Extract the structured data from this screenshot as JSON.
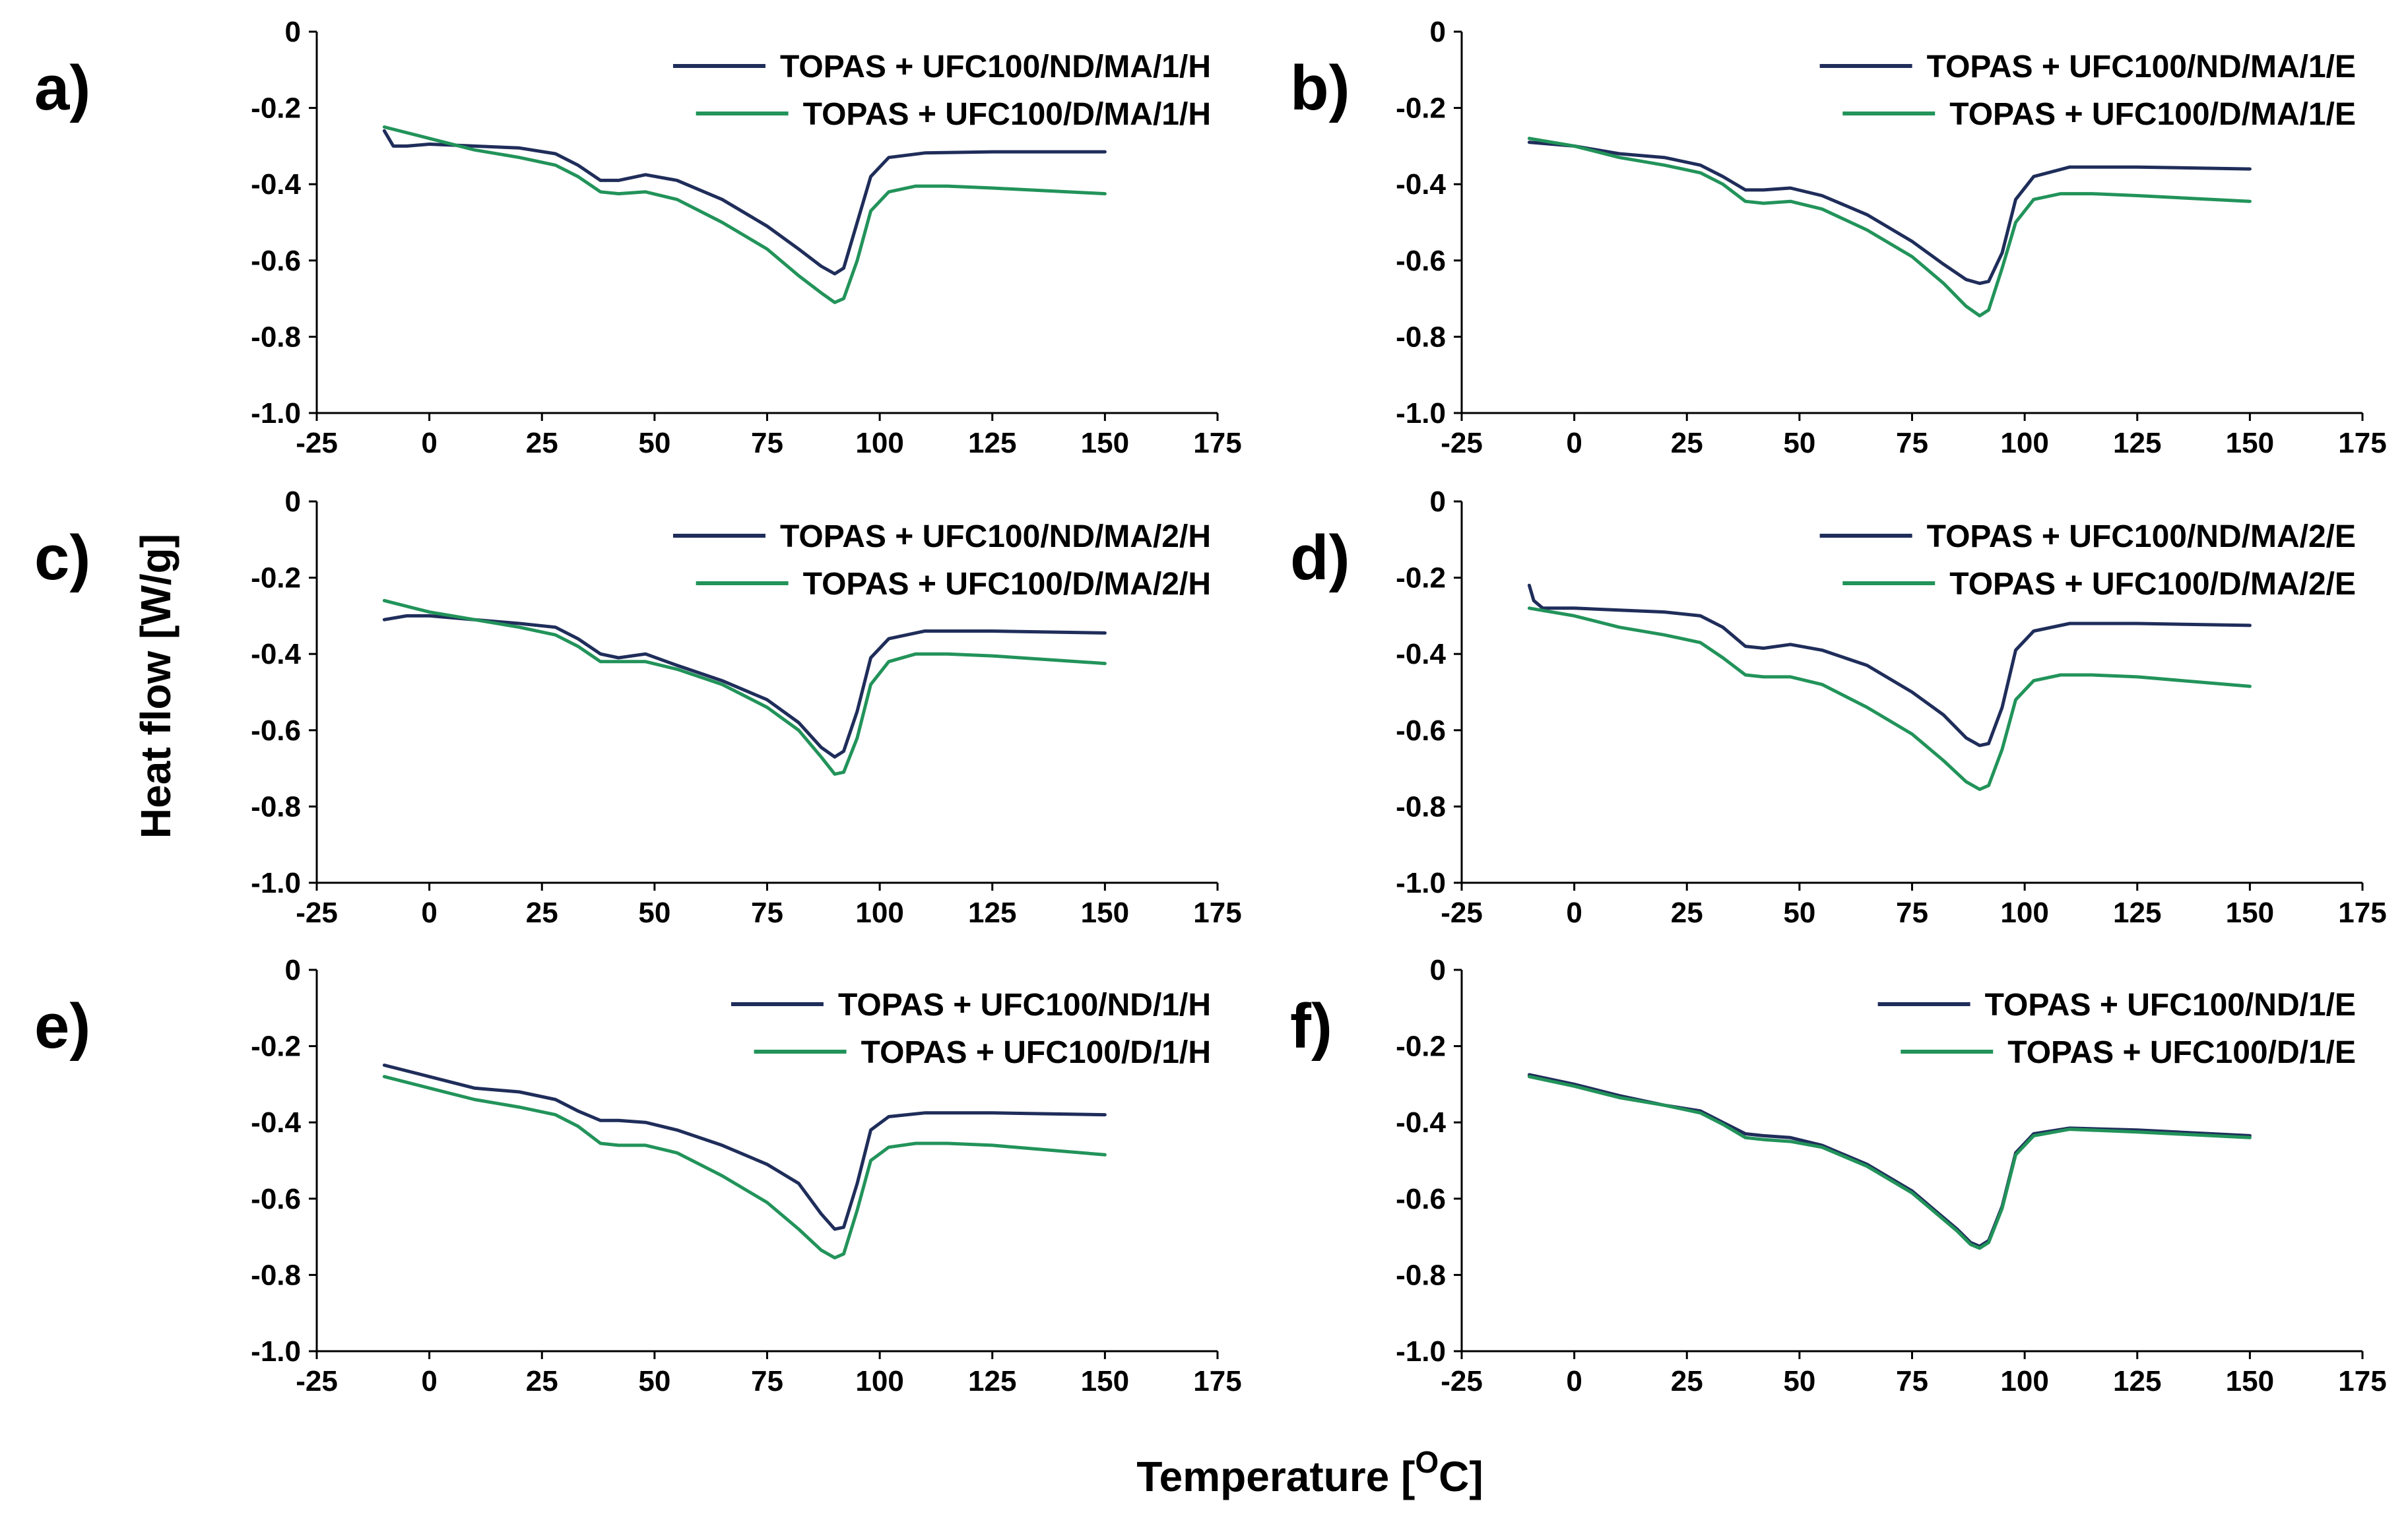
{
  "figure": {
    "ylabel": "Heat flow [W/g]",
    "xlabel_main": "Temperature [",
    "xlabel_sup": "O",
    "xlabel_end": "C]"
  },
  "colors": {
    "nd": "#1f2d5a",
    "d": "#22935a"
  },
  "chart_data": [
    {
      "type": "line",
      "panel": "a)",
      "title": "",
      "xlim": [
        -25,
        175
      ],
      "ylim": [
        -1.0,
        0
      ],
      "xticks": [
        -25,
        0,
        25,
        50,
        75,
        100,
        125,
        150,
        175
      ],
      "yticks": [
        0,
        -0.2,
        -0.4,
        -0.6,
        -0.8,
        -1.0
      ],
      "series": [
        {
          "name": "TOPAS + UFC100/ND/MA/1/H",
          "color": "#1f2d5a",
          "x": [
            -10,
            -8,
            -5,
            0,
            10,
            20,
            28,
            33,
            38,
            42,
            48,
            55,
            65,
            75,
            82,
            87,
            90,
            92,
            95,
            98,
            102,
            110,
            125,
            150
          ],
          "y": [
            -0.26,
            -0.3,
            -0.3,
            -0.295,
            -0.3,
            -0.305,
            -0.32,
            -0.35,
            -0.39,
            -0.39,
            -0.375,
            -0.39,
            -0.44,
            -0.51,
            -0.57,
            -0.615,
            -0.635,
            -0.62,
            -0.5,
            -0.38,
            -0.33,
            -0.318,
            -0.315,
            -0.315
          ]
        },
        {
          "name": "TOPAS + UFC100/D/MA/1/H",
          "color": "#22935a",
          "x": [
            -10,
            0,
            10,
            20,
            28,
            33,
            38,
            42,
            48,
            55,
            65,
            75,
            82,
            87,
            90,
            92,
            95,
            98,
            102,
            108,
            115,
            125,
            150
          ],
          "y": [
            -0.25,
            -0.28,
            -0.31,
            -0.33,
            -0.35,
            -0.38,
            -0.42,
            -0.425,
            -0.42,
            -0.44,
            -0.5,
            -0.57,
            -0.64,
            -0.685,
            -0.71,
            -0.7,
            -0.6,
            -0.47,
            -0.42,
            -0.405,
            -0.405,
            -0.41,
            -0.425
          ]
        }
      ]
    },
    {
      "type": "line",
      "panel": "b)",
      "title": "",
      "xlim": [
        -25,
        175
      ],
      "ylim": [
        -1.0,
        0
      ],
      "xticks": [
        -25,
        0,
        25,
        50,
        75,
        100,
        125,
        150,
        175
      ],
      "yticks": [
        0,
        -0.2,
        -0.4,
        -0.6,
        -0.8,
        -1.0
      ],
      "series": [
        {
          "name": "TOPAS + UFC100/ND/MA/1/E",
          "color": "#1f2d5a",
          "x": [
            -10,
            0,
            10,
            20,
            28,
            33,
            38,
            42,
            48,
            55,
            65,
            75,
            82,
            87,
            90,
            92,
            95,
            98,
            102,
            110,
            125,
            150
          ],
          "y": [
            -0.29,
            -0.3,
            -0.32,
            -0.33,
            -0.35,
            -0.38,
            -0.415,
            -0.415,
            -0.41,
            -0.43,
            -0.48,
            -0.55,
            -0.61,
            -0.65,
            -0.66,
            -0.655,
            -0.58,
            -0.44,
            -0.38,
            -0.355,
            -0.355,
            -0.36
          ]
        },
        {
          "name": "TOPAS + UFC100/D/MA/1/E",
          "color": "#22935a",
          "x": [
            -10,
            0,
            10,
            20,
            28,
            33,
            38,
            42,
            48,
            55,
            65,
            75,
            82,
            87,
            90,
            92,
            95,
            98,
            102,
            108,
            115,
            125,
            150
          ],
          "y": [
            -0.28,
            -0.3,
            -0.33,
            -0.35,
            -0.37,
            -0.4,
            -0.445,
            -0.45,
            -0.445,
            -0.465,
            -0.52,
            -0.59,
            -0.66,
            -0.72,
            -0.745,
            -0.73,
            -0.62,
            -0.5,
            -0.44,
            -0.425,
            -0.425,
            -0.43,
            -0.445
          ]
        }
      ]
    },
    {
      "type": "line",
      "panel": "c)",
      "title": "",
      "xlim": [
        -25,
        175
      ],
      "ylim": [
        -1.0,
        0
      ],
      "xticks": [
        -25,
        0,
        25,
        50,
        75,
        100,
        125,
        150,
        175
      ],
      "yticks": [
        0,
        -0.2,
        -0.4,
        -0.6,
        -0.8,
        -1.0
      ],
      "series": [
        {
          "name": "TOPAS + UFC100/ND/MA/2/H",
          "color": "#1f2d5a",
          "x": [
            -10,
            -5,
            0,
            10,
            20,
            28,
            33,
            38,
            42,
            48,
            55,
            65,
            75,
            82,
            87,
            90,
            92,
            95,
            98,
            102,
            110,
            125,
            150
          ],
          "y": [
            -0.31,
            -0.3,
            -0.3,
            -0.31,
            -0.32,
            -0.33,
            -0.36,
            -0.4,
            -0.41,
            -0.4,
            -0.43,
            -0.47,
            -0.52,
            -0.58,
            -0.645,
            -0.67,
            -0.655,
            -0.55,
            -0.41,
            -0.36,
            -0.34,
            -0.34,
            -0.345
          ]
        },
        {
          "name": "TOPAS + UFC100/D/MA/2/H",
          "color": "#22935a",
          "x": [
            -10,
            0,
            10,
            20,
            28,
            33,
            38,
            42,
            48,
            55,
            65,
            75,
            82,
            87,
            90,
            92,
            95,
            98,
            102,
            108,
            115,
            125,
            150
          ],
          "y": [
            -0.26,
            -0.29,
            -0.31,
            -0.33,
            -0.35,
            -0.38,
            -0.42,
            -0.42,
            -0.42,
            -0.44,
            -0.48,
            -0.54,
            -0.6,
            -0.67,
            -0.715,
            -0.71,
            -0.62,
            -0.48,
            -0.42,
            -0.4,
            -0.4,
            -0.405,
            -0.425
          ]
        }
      ]
    },
    {
      "type": "line",
      "panel": "d)",
      "title": "",
      "xlim": [
        -25,
        175
      ],
      "ylim": [
        -1.0,
        0
      ],
      "xticks": [
        -25,
        0,
        25,
        50,
        75,
        100,
        125,
        150,
        175
      ],
      "yticks": [
        0,
        -0.2,
        -0.4,
        -0.6,
        -0.8,
        -1.0
      ],
      "series": [
        {
          "name": "TOPAS + UFC100/ND/MA/2/E",
          "color": "#1f2d5a",
          "x": [
            -10,
            -9,
            -7,
            -5,
            0,
            10,
            20,
            28,
            33,
            38,
            42,
            48,
            55,
            65,
            75,
            82,
            87,
            90,
            92,
            95,
            98,
            102,
            110,
            125,
            150
          ],
          "y": [
            -0.22,
            -0.26,
            -0.28,
            -0.28,
            -0.28,
            -0.285,
            -0.29,
            -0.3,
            -0.33,
            -0.38,
            -0.385,
            -0.375,
            -0.39,
            -0.43,
            -0.5,
            -0.56,
            -0.62,
            -0.64,
            -0.635,
            -0.54,
            -0.39,
            -0.34,
            -0.32,
            -0.32,
            -0.325
          ]
        },
        {
          "name": "TOPAS + UFC100/D/MA/2/E",
          "color": "#22935a",
          "x": [
            -10,
            0,
            10,
            20,
            28,
            33,
            38,
            42,
            48,
            55,
            65,
            75,
            82,
            87,
            90,
            92,
            95,
            98,
            102,
            108,
            115,
            125,
            150
          ],
          "y": [
            -0.28,
            -0.3,
            -0.33,
            -0.35,
            -0.37,
            -0.41,
            -0.455,
            -0.46,
            -0.46,
            -0.48,
            -0.54,
            -0.61,
            -0.68,
            -0.735,
            -0.755,
            -0.745,
            -0.65,
            -0.52,
            -0.47,
            -0.455,
            -0.455,
            -0.46,
            -0.485
          ]
        }
      ]
    },
    {
      "type": "line",
      "panel": "e)",
      "title": "",
      "xlim": [
        -25,
        175
      ],
      "ylim": [
        -1.0,
        0
      ],
      "xticks": [
        -25,
        0,
        25,
        50,
        75,
        100,
        125,
        150,
        175
      ],
      "yticks": [
        0,
        -0.2,
        -0.4,
        -0.6,
        -0.8,
        -1.0
      ],
      "series": [
        {
          "name": "TOPAS + UFC100/ND/1/H",
          "color": "#1f2d5a",
          "x": [
            -10,
            0,
            10,
            20,
            28,
            33,
            38,
            42,
            48,
            55,
            65,
            75,
            82,
            87,
            90,
            92,
            95,
            98,
            102,
            110,
            125,
            150
          ],
          "y": [
            -0.25,
            -0.28,
            -0.31,
            -0.32,
            -0.34,
            -0.37,
            -0.395,
            -0.395,
            -0.4,
            -0.42,
            -0.46,
            -0.51,
            -0.56,
            -0.64,
            -0.68,
            -0.675,
            -0.56,
            -0.42,
            -0.385,
            -0.375,
            -0.375,
            -0.38
          ]
        },
        {
          "name": "TOPAS + UFC100/D/1/H",
          "color": "#22935a",
          "x": [
            -10,
            0,
            10,
            20,
            28,
            33,
            38,
            42,
            48,
            55,
            65,
            75,
            82,
            87,
            90,
            92,
            95,
            98,
            102,
            108,
            115,
            125,
            150
          ],
          "y": [
            -0.28,
            -0.31,
            -0.34,
            -0.36,
            -0.38,
            -0.41,
            -0.455,
            -0.46,
            -0.46,
            -0.48,
            -0.54,
            -0.61,
            -0.68,
            -0.735,
            -0.755,
            -0.745,
            -0.63,
            -0.5,
            -0.465,
            -0.455,
            -0.455,
            -0.46,
            -0.485
          ]
        }
      ]
    },
    {
      "type": "line",
      "panel": "f)",
      "title": "",
      "xlim": [
        -25,
        175
      ],
      "ylim": [
        -1.0,
        0
      ],
      "xticks": [
        -25,
        0,
        25,
        50,
        75,
        100,
        125,
        150,
        175
      ],
      "yticks": [
        0,
        -0.2,
        -0.4,
        -0.6,
        -0.8,
        -1.0
      ],
      "series": [
        {
          "name": "TOPAS + UFC100/ND/1/E",
          "color": "#1f2d5a",
          "x": [
            -10,
            0,
            10,
            20,
            28,
            33,
            38,
            42,
            48,
            55,
            65,
            75,
            80,
            85,
            88,
            90,
            92,
            95,
            98,
            102,
            110,
            125,
            150
          ],
          "y": [
            -0.275,
            -0.3,
            -0.33,
            -0.355,
            -0.37,
            -0.4,
            -0.43,
            -0.435,
            -0.44,
            -0.46,
            -0.51,
            -0.58,
            -0.63,
            -0.68,
            -0.715,
            -0.725,
            -0.71,
            -0.62,
            -0.48,
            -0.43,
            -0.415,
            -0.42,
            -0.435
          ]
        },
        {
          "name": "TOPAS + UFC100/D/1/E",
          "color": "#22935a",
          "x": [
            -10,
            0,
            10,
            20,
            28,
            33,
            38,
            42,
            48,
            55,
            65,
            75,
            80,
            85,
            88,
            90,
            92,
            95,
            98,
            102,
            110,
            125,
            150
          ],
          "y": [
            -0.28,
            -0.305,
            -0.335,
            -0.355,
            -0.375,
            -0.405,
            -0.44,
            -0.445,
            -0.45,
            -0.465,
            -0.515,
            -0.585,
            -0.635,
            -0.685,
            -0.72,
            -0.73,
            -0.715,
            -0.625,
            -0.485,
            -0.435,
            -0.418,
            -0.425,
            -0.44
          ]
        }
      ]
    }
  ]
}
